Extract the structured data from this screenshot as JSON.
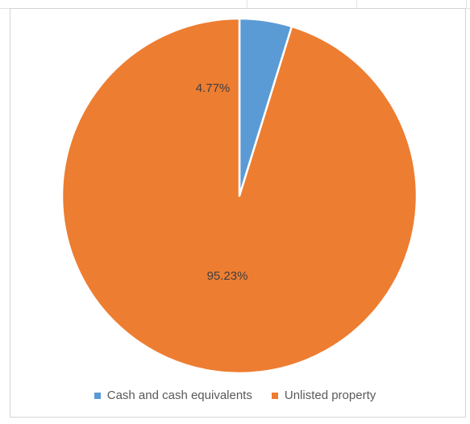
{
  "chart_data": {
    "type": "pie",
    "title": "",
    "categories": [
      "Cash and cash equivalents",
      "Unlisted property"
    ],
    "values": [
      4.77,
      95.23
    ],
    "data_labels": [
      "4.77%",
      "95.23%"
    ],
    "colors": [
      "#5b9bd5",
      "#ed7d31"
    ],
    "legend_position": "bottom",
    "start_angle": "12 o'clock, clockwise"
  }
}
